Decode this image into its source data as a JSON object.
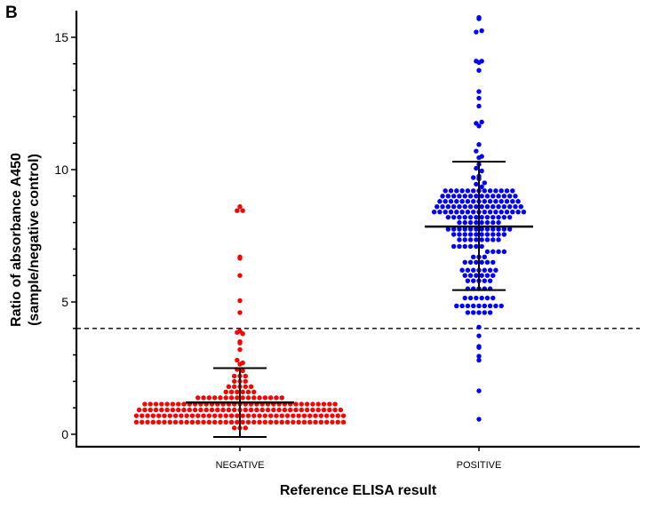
{
  "panel_label": "B",
  "chart_data": {
    "type": "scatter",
    "subtype": "dot-plot-beeswarm",
    "ylabel_line1": "Ratio of absorbance A450",
    "ylabel_line2": "(sample/negative control)",
    "xlabel": "Reference ELISA result",
    "categories": [
      "NEGATIVE",
      "POSITIVE"
    ],
    "ylim": [
      -0.5,
      16
    ],
    "yticks": [
      "0",
      "5",
      "10",
      "15"
    ],
    "ytick_values": [
      0,
      5,
      10,
      15
    ],
    "cutoff_line": 4.0,
    "grid": false,
    "colors": {
      "NEGATIVE": "#ff0000",
      "POSITIVE": "#0000ff",
      "summary": "#000000"
    },
    "series": [
      {
        "category": "NEGATIVE",
        "mean": 1.2,
        "sd_upper": 2.5,
        "sd_lower": -0.1,
        "values": [
          8.6,
          8.45,
          8.45,
          6.7,
          6.65,
          6.0,
          5.05,
          4.6,
          3.9,
          3.85,
          3.8,
          3.5,
          3.45,
          3.2,
          2.8,
          2.7,
          2.65,
          2.45,
          2.4,
          2.2,
          2.2,
          2.2,
          2.0,
          2.0,
          2.0,
          1.8,
          1.8,
          1.8,
          1.8,
          1.8,
          1.6,
          1.6,
          1.6,
          1.6,
          1.6,
          1.6,
          1.38,
          1.38,
          1.38,
          1.38,
          1.38,
          1.38,
          1.38,
          1.38,
          1.38,
          1.38,
          1.38,
          1.38,
          1.38,
          1.38,
          1.38,
          1.38,
          1.14,
          1.14,
          1.14,
          1.14,
          1.14,
          1.14,
          1.14,
          1.14,
          1.14,
          1.14,
          1.14,
          1.14,
          1.14,
          1.14,
          1.14,
          1.14,
          1.14,
          1.14,
          1.14,
          1.14,
          1.14,
          1.14,
          1.14,
          1.14,
          1.14,
          1.14,
          1.14,
          1.14,
          1.14,
          1.14,
          1.14,
          1.14,
          1.14,
          1.14,
          1.14,
          0.92,
          0.92,
          0.92,
          0.92,
          0.92,
          0.92,
          0.92,
          0.92,
          0.92,
          0.92,
          0.92,
          0.92,
          0.92,
          0.92,
          0.92,
          0.92,
          0.92,
          0.92,
          0.92,
          0.92,
          0.92,
          0.92,
          0.92,
          0.92,
          0.92,
          0.92,
          0.92,
          0.92,
          0.92,
          0.92,
          0.92,
          0.92,
          0.92,
          0.92,
          0.92,
          0.92,
          0.92,
          0.7,
          0.7,
          0.7,
          0.7,
          0.7,
          0.7,
          0.7,
          0.7,
          0.7,
          0.7,
          0.7,
          0.7,
          0.7,
          0.7,
          0.7,
          0.7,
          0.7,
          0.7,
          0.7,
          0.7,
          0.7,
          0.7,
          0.7,
          0.7,
          0.7,
          0.7,
          0.7,
          0.7,
          0.7,
          0.7,
          0.7,
          0.7,
          0.7,
          0.7,
          0.7,
          0.7,
          0.7,
          0.7,
          0.46,
          0.46,
          0.46,
          0.46,
          0.46,
          0.46,
          0.46,
          0.46,
          0.46,
          0.46,
          0.46,
          0.46,
          0.46,
          0.46,
          0.46,
          0.46,
          0.46,
          0.46,
          0.46,
          0.46,
          0.46,
          0.46,
          0.46,
          0.46,
          0.46,
          0.46,
          0.46,
          0.46,
          0.46,
          0.46,
          0.46,
          0.46,
          0.46,
          0.46,
          0.46,
          0.46,
          0.46,
          0.46,
          0.24,
          0.24,
          0.24
        ]
      },
      {
        "category": "POSITIVE",
        "mean": 7.85,
        "sd_upper": 10.3,
        "sd_lower": 5.45,
        "values": [
          15.75,
          15.7,
          15.2,
          15.25,
          14.1,
          14.05,
          14.1,
          13.75,
          12.95,
          12.7,
          12.4,
          11.75,
          11.65,
          11.8,
          10.95,
          10.7,
          10.5,
          10.45,
          10.2,
          10.05,
          9.95,
          9.75,
          9.7,
          9.65,
          9.5,
          9.45,
          9.35,
          9.2,
          9.2,
          9.2,
          9.2,
          9.2,
          9.2,
          9.2,
          9.2,
          9.2,
          9.2,
          9.2,
          9.2,
          9.2,
          9.0,
          9.0,
          9.0,
          9.0,
          9.0,
          9.0,
          9.0,
          9.0,
          9.0,
          9.0,
          9.0,
          9.0,
          9.0,
          9.0,
          8.8,
          8.8,
          8.8,
          8.8,
          8.8,
          8.8,
          8.8,
          8.8,
          8.8,
          8.8,
          8.8,
          8.8,
          8.8,
          8.8,
          8.8,
          8.6,
          8.6,
          8.6,
          8.6,
          8.6,
          8.6,
          8.6,
          8.6,
          8.6,
          8.6,
          8.6,
          8.6,
          8.6,
          8.6,
          8.6,
          8.6,
          8.4,
          8.4,
          8.4,
          8.4,
          8.4,
          8.4,
          8.4,
          8.4,
          8.4,
          8.4,
          8.4,
          8.4,
          8.4,
          8.4,
          8.4,
          8.4,
          8.4,
          8.2,
          8.2,
          8.2,
          8.2,
          8.2,
          8.2,
          8.2,
          8.2,
          8.2,
          8.2,
          8.2,
          8.2,
          8.0,
          8.0,
          8.0,
          8.0,
          8.0,
          8.0,
          8.0,
          8.0,
          7.75,
          7.75,
          7.75,
          7.75,
          7.75,
          7.75,
          7.75,
          7.75,
          7.75,
          7.75,
          7.75,
          7.75,
          7.55,
          7.55,
          7.55,
          7.55,
          7.55,
          7.55,
          7.55,
          7.55,
          7.55,
          7.55,
          7.35,
          7.35,
          7.35,
          7.35,
          7.35,
          7.35,
          7.35,
          7.35,
          7.1,
          7.1,
          7.1,
          7.1,
          7.1,
          7.1,
          6.9,
          6.9,
          6.9,
          6.9,
          6.7,
          6.7,
          6.7,
          6.5,
          6.5,
          6.5,
          6.5,
          6.5,
          6.5,
          6.2,
          6.2,
          6.2,
          6.2,
          6.2,
          6.2,
          6.2,
          6.0,
          6.0,
          6.0,
          6.0,
          6.0,
          6.0,
          5.8,
          5.8,
          5.8,
          5.8,
          5.8,
          5.5,
          5.5,
          5.5,
          5.5,
          5.5,
          5.15,
          5.15,
          5.15,
          5.15,
          5.15,
          5.15,
          4.85,
          4.85,
          4.85,
          4.85,
          4.85,
          4.85,
          4.85,
          4.85,
          4.85,
          4.6,
          4.6,
          4.6,
          4.6,
          4.6,
          4.05,
          3.72,
          3.32,
          3.28,
          2.95,
          2.8,
          1.64,
          0.57
        ]
      }
    ]
  }
}
